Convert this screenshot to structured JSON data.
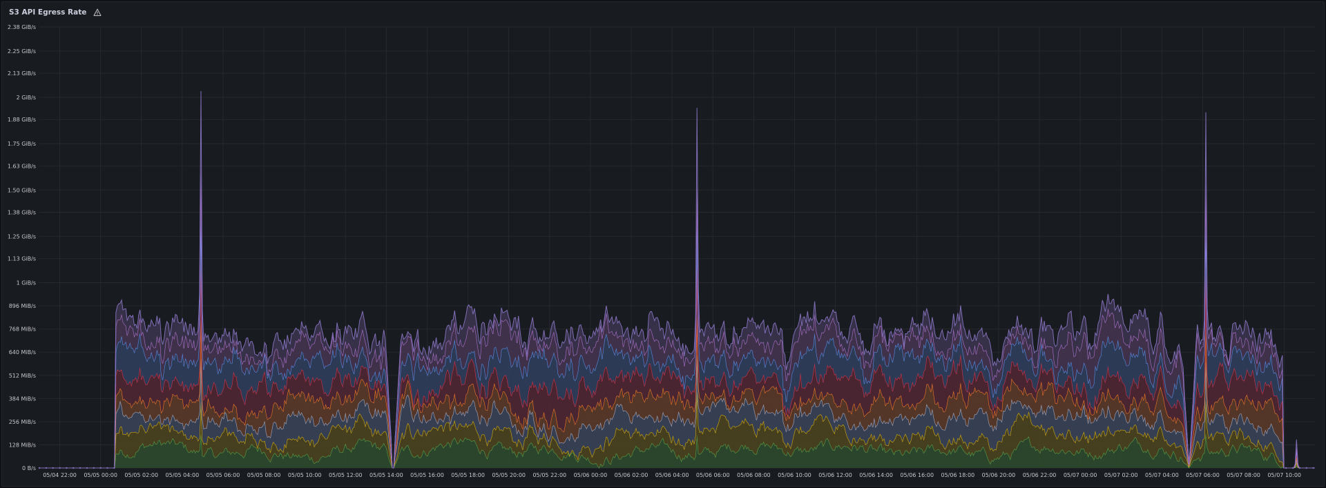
{
  "panel": {
    "title": "S3 API Egress Rate",
    "warning_icon": "warning-triangle-icon"
  },
  "colors": {
    "background": "#111217",
    "panel_background": "#181b1f",
    "text": "#ccccdc",
    "grid": "#26292f"
  },
  "chart_data": {
    "type": "area",
    "stacked": true,
    "title": "S3 API Egress Rate",
    "xlabel": "",
    "ylabel": "",
    "grid": true,
    "legend": "none",
    "ylim_gib_s": [
      0,
      2.38
    ],
    "x_range": [
      "05/04 21:00",
      "05/07 11:30"
    ],
    "y_ticks": [
      "0 B/s",
      "128 MiB/s",
      "256 MiB/s",
      "384 MiB/s",
      "512 MiB/s",
      "640 MiB/s",
      "768 MiB/s",
      "896 MiB/s",
      "1 GiB/s",
      "1.13 GiB/s",
      "1.25 GiB/s",
      "1.38 GiB/s",
      "1.50 GiB/s",
      "1.63 GiB/s",
      "1.75 GiB/s",
      "1.88 GiB/s",
      "2 GiB/s",
      "2.13 GiB/s",
      "2.25 GiB/s",
      "2.38 GiB/s"
    ],
    "x_ticks": [
      "05/04 22:00",
      "05/05 00:00",
      "05/05 02:00",
      "05/05 04:00",
      "05/05 06:00",
      "05/05 08:00",
      "05/05 10:00",
      "05/05 12:00",
      "05/05 14:00",
      "05/05 16:00",
      "05/05 18:00",
      "05/05 20:00",
      "05/05 22:00",
      "05/06 00:00",
      "05/06 02:00",
      "05/06 04:00",
      "05/06 06:00",
      "05/06 08:00",
      "05/06 10:00",
      "05/06 12:00",
      "05/06 14:00",
      "05/06 16:00",
      "05/06 18:00",
      "05/06 20:00",
      "05/06 22:00",
      "05/07 00:00",
      "05/07 02:00",
      "05/07 04:00",
      "05/07 06:00",
      "05/07 08:00",
      "05/07 10:00"
    ],
    "series": [
      {
        "color": "#56a64b",
        "fill": "#2d4a2e",
        "avg_mib_s": 95
      },
      {
        "color": "#e0b400",
        "fill": "#4a4420",
        "avg_mib_s": 90
      },
      {
        "color": "#a8b3d1",
        "fill": "#3a4256",
        "avg_mib_s": 90
      },
      {
        "color": "#ff7f27",
        "fill": "#5a3a28",
        "avg_mib_s": 90
      },
      {
        "color": "#e02f44",
        "fill": "#4e2733",
        "avg_mib_s": 110
      },
      {
        "color": "#5794f2",
        "fill": "#2f3e5c",
        "avg_mib_s": 115
      },
      {
        "color": "#b877d9",
        "fill": "#45344f",
        "avg_mib_s": 95
      },
      {
        "color": "#806eb7",
        "fill": "#3a344c",
        "avg_mib_s": 75
      }
    ],
    "active_periods": [
      [
        "05/05 00:45",
        "05/05 14:15"
      ],
      [
        "05/05 14:25",
        "05/07 09:55"
      ]
    ],
    "dips_to_zero": [
      "05/05 14:20",
      "05/07 05:20"
    ],
    "spikes": [
      {
        "time": "05/05 04:55",
        "total_gib_s": 2.18
      },
      {
        "time": "05/06 05:15",
        "total_gib_s": 2.08
      },
      {
        "time": "05/07 06:10",
        "total_gib_s": 2.05
      },
      {
        "time": "05/07 10:35",
        "total_gib_s": 0.17
      }
    ]
  }
}
